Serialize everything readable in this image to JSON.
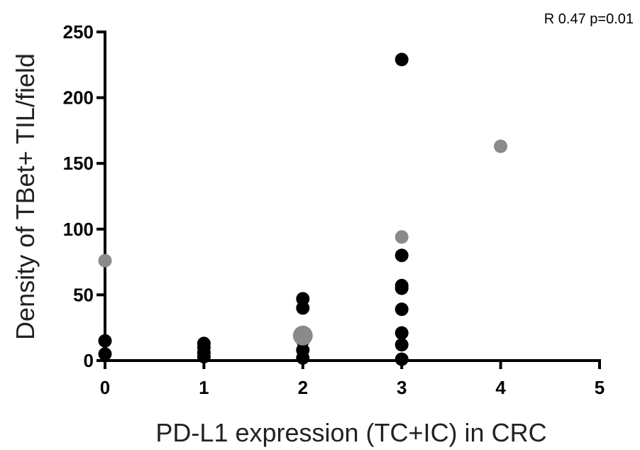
{
  "chart_data": {
    "type": "scatter",
    "title": "",
    "xlabel": "PD-L1 expression (TC+IC) in CRC",
    "ylabel": "Density of TBet+  TIL/field",
    "annotation": "R 0.47  p=0.01",
    "xlim": [
      0,
      5
    ],
    "ylim": [
      0,
      250
    ],
    "xticks": [
      "0",
      "1",
      "2",
      "3",
      "4",
      "5"
    ],
    "yticks": [
      "0",
      "50",
      "100",
      "150",
      "200",
      "250"
    ],
    "grid": false,
    "legend": "none",
    "series": [
      {
        "color": "#000000",
        "points": [
          [
            0,
            15
          ],
          [
            0,
            5
          ],
          [
            1,
            13
          ],
          [
            1,
            10
          ],
          [
            1,
            6
          ],
          [
            1,
            3
          ],
          [
            2,
            47
          ],
          [
            2,
            40
          ],
          [
            2,
            15
          ],
          [
            2,
            8
          ],
          [
            2,
            2
          ],
          [
            3,
            229
          ],
          [
            3,
            80
          ],
          [
            3,
            57
          ],
          [
            3,
            55
          ],
          [
            3,
            39
          ],
          [
            3,
            21
          ],
          [
            3,
            12
          ],
          [
            3,
            1
          ]
        ]
      },
      {
        "color": "#8a8a8a",
        "points": [
          [
            0,
            76
          ],
          [
            2,
            19
          ],
          [
            3,
            94
          ],
          [
            4,
            163
          ]
        ]
      }
    ]
  }
}
